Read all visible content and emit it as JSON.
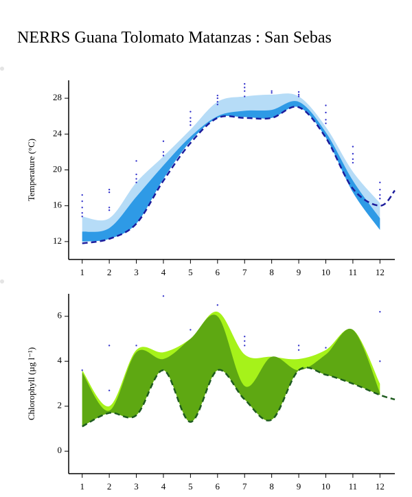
{
  "title": "NERRS Guana Tolomato Matanzas : San Sebas",
  "chart_data": [
    {
      "type": "area",
      "ylabel": "Temperature (°C)",
      "x": [
        1,
        2,
        3,
        4,
        5,
        6,
        7,
        8,
        9,
        10,
        11,
        12
      ],
      "xlim": [
        0.5,
        12.55
      ],
      "xticks": [
        1,
        2,
        3,
        4,
        5,
        6,
        7,
        8,
        9,
        10,
        11,
        12
      ],
      "ylim": [
        10,
        30
      ],
      "yticks": [
        12,
        16,
        20,
        24,
        28
      ],
      "series": [
        {
          "kind": "band",
          "color": "#b6dcf7",
          "upper": [
            14.8,
            14.6,
            18.6,
            21.5,
            24.5,
            27.6,
            28.2,
            28.4,
            28.2,
            24.8,
            19.8,
            16.3
          ],
          "lower": [
            12.0,
            12.3,
            14.0,
            19.0,
            23.2,
            25.8,
            25.9,
            25.8,
            27.0,
            23.6,
            17.5,
            13.3
          ]
        },
        {
          "kind": "band",
          "color": "#2e9ae6",
          "upper": [
            13.1,
            13.5,
            17.0,
            20.5,
            23.7,
            26.0,
            26.6,
            26.7,
            27.6,
            24.2,
            18.8,
            14.6
          ],
          "lower": [
            12.0,
            12.3,
            14.0,
            19.0,
            23.2,
            25.8,
            25.9,
            25.8,
            27.0,
            23.6,
            17.5,
            13.3
          ]
        },
        {
          "kind": "line",
          "color": "#1c1c9c",
          "dashed": true,
          "x": [
            1,
            2,
            3,
            4,
            5,
            6,
            7,
            8,
            9,
            10,
            11,
            12,
            12.55
          ],
          "values": [
            11.8,
            12.3,
            14.0,
            18.8,
            23.0,
            25.8,
            25.8,
            25.8,
            27.0,
            23.6,
            17.9,
            16.0,
            17.7
          ]
        },
        {
          "kind": "points",
          "color": "#3333cc",
          "x": [
            1,
            1,
            1,
            1,
            1,
            2,
            2,
            2,
            2,
            3,
            3,
            3,
            3,
            4,
            4,
            4,
            5,
            5,
            5,
            5,
            6,
            6,
            6,
            6,
            7,
            7,
            7,
            7,
            8,
            8,
            9,
            9,
            9,
            10,
            10,
            10,
            10,
            11,
            11,
            11,
            11,
            12,
            12,
            12,
            12
          ],
          "y": [
            17.2,
            16.5,
            15.8,
            15.2,
            14.8,
            17.8,
            17.5,
            15.8,
            15.5,
            21.0,
            19.5,
            19.0,
            18.6,
            23.2,
            22.0,
            21.6,
            26.5,
            25.8,
            25.4,
            25.0,
            28.3,
            28.0,
            27.6,
            27.3,
            29.6,
            29.2,
            28.8,
            28.2,
            28.8,
            28.6,
            28.7,
            28.4,
            28.2,
            27.2,
            26.4,
            25.6,
            25.2,
            22.6,
            21.8,
            21.2,
            20.8,
            18.6,
            17.8,
            17.2,
            16.8
          ]
        }
      ]
    },
    {
      "type": "area",
      "ylabel": "Chlorophyll (µg l⁻¹)",
      "x": [
        1,
        2,
        3,
        4,
        5,
        6,
        7,
        8,
        9,
        10,
        11,
        12
      ],
      "xlim": [
        0.5,
        12.55
      ],
      "xticks": [
        1,
        2,
        3,
        4,
        5,
        6,
        7,
        8,
        9,
        10,
        11,
        12
      ],
      "ylim": [
        -1,
        7
      ],
      "yticks": [
        0,
        2,
        4,
        6
      ],
      "series": [
        {
          "kind": "band",
          "color": "#a6f21a",
          "upper": [
            3.6,
            2.0,
            4.5,
            4.4,
            5.0,
            6.2,
            4.3,
            4.2,
            4.1,
            4.5,
            5.4,
            3.0
          ],
          "lower": [
            1.1,
            1.7,
            1.6,
            3.6,
            1.3,
            3.6,
            2.3,
            1.4,
            3.6,
            3.4,
            3.0,
            2.5
          ]
        },
        {
          "kind": "band",
          "color": "#5ea812",
          "upper": [
            3.5,
            1.8,
            4.4,
            4.1,
            5.0,
            6.0,
            2.9,
            4.2,
            3.6,
            4.3,
            5.4,
            2.6
          ],
          "lower": [
            1.1,
            1.7,
            1.6,
            3.6,
            1.3,
            3.6,
            2.3,
            1.4,
            3.6,
            3.4,
            3.0,
            2.5
          ]
        },
        {
          "kind": "line",
          "color": "#1f5c1f",
          "dashed": true,
          "x": [
            1,
            2,
            3,
            4,
            5,
            6,
            7,
            8,
            9,
            10,
            11,
            12,
            12.55
          ],
          "values": [
            1.1,
            1.7,
            1.6,
            3.6,
            1.3,
            3.6,
            2.3,
            1.4,
            3.6,
            3.4,
            3.0,
            2.5,
            2.3
          ]
        },
        {
          "kind": "points",
          "color": "#3a3acc",
          "x": [
            1,
            2,
            2,
            3,
            4,
            5,
            6,
            7,
            7,
            7,
            9,
            9,
            10,
            12,
            12
          ],
          "y": [
            3.6,
            4.7,
            2.7,
            4.7,
            6.9,
            5.4,
            6.5,
            5.1,
            4.9,
            4.7,
            4.7,
            4.5,
            4.6,
            6.2,
            4.0
          ]
        }
      ]
    }
  ]
}
